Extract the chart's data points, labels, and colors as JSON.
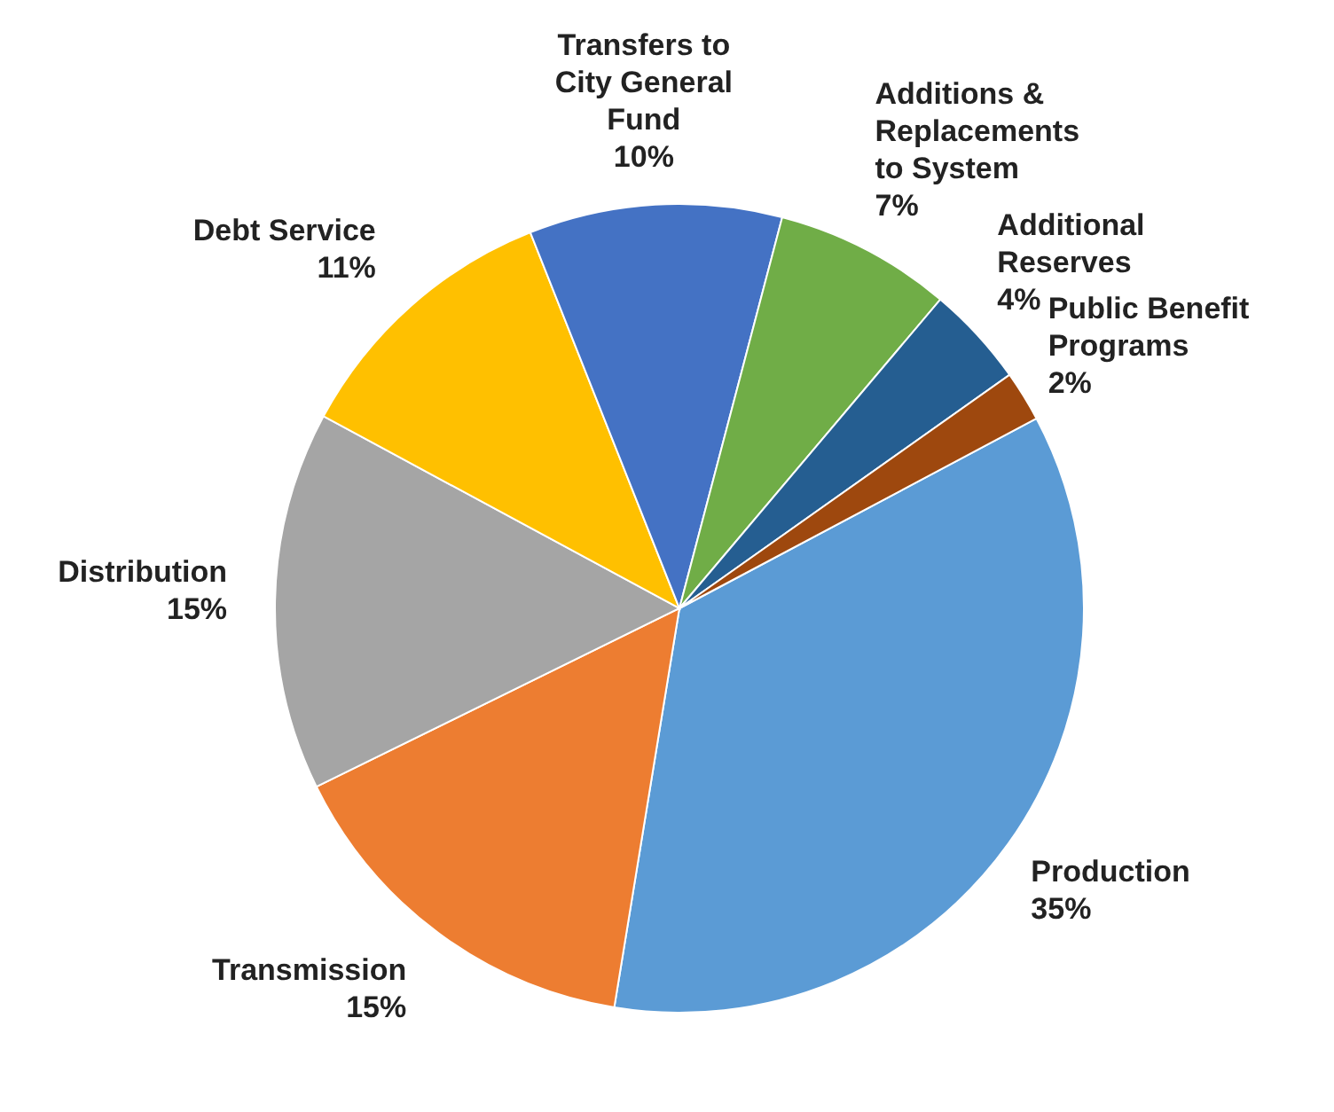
{
  "chart_data": {
    "type": "pie",
    "categories": [
      "Production",
      "Transmission",
      "Distribution",
      "Debt Service",
      "Transfers to City General Fund",
      "Additions & Replacements to System",
      "Additional Reserves",
      "Public Benefit Programs"
    ],
    "values": [
      35,
      15,
      15,
      11,
      10,
      7,
      4,
      2
    ],
    "value_labels": [
      "35%",
      "15%",
      "15%",
      "11%",
      "10%",
      "7%",
      "4%",
      "2%"
    ],
    "colors": [
      "#5b9bd5",
      "#ed7d31",
      "#a5a5a5",
      "#ffc000",
      "#4472c4",
      "#70ad47",
      "#255e91",
      "#9e480e"
    ]
  }
}
